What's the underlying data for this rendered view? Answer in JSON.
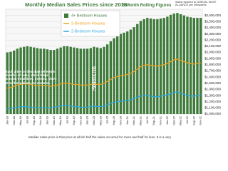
{
  "chart_data": {
    "type": "bar-line",
    "title": "Monthly Median Sales Prices since 2018",
    "subtitle": "- 6-Month Rolling Figures",
    "source_note": "Sales reported to NORCAL MLS® ALLIANCE per Infosparks",
    "annotation": "Each price on this chart reflects 6 months of sales, which helps smooth trend lines. Even so, short-term fluctuations are common.",
    "event_label": "Pandemic hits",
    "caption": "Median sales price is that price at which half the sales occurred for more and half for less. It is a very",
    "categories": [
      "Jan-18",
      null,
      "Mar-18",
      null,
      "May-18",
      null,
      "Jul-18",
      null,
      "Sep-18",
      null,
      "Nov-18",
      null,
      "Jan-19",
      null,
      "Mar-19",
      null,
      "May-19",
      null,
      "Jul-19",
      null,
      "Sep-19",
      null,
      "Nov-19",
      null,
      "Jan-20",
      null,
      "Mar-20",
      null,
      "May-20",
      null,
      "Jul-20",
      null,
      "Sep-20",
      null,
      "Nov-20",
      null,
      "Jan-21",
      null,
      "Mar-21",
      null,
      "May-21",
      null,
      "Jul-21",
      null,
      "Sep-21",
      null,
      "Nov-21",
      null,
      "Jan-22",
      null,
      "Mar-22",
      null,
      "May-22",
      null,
      "Jul-22",
      null,
      "Sep-22",
      null,
      "Nov-22"
    ],
    "series": [
      {
        "name": "4+ Bedroom Houses",
        "kind": "bar",
        "color": "#3e7a3a",
        "values": [
          2000000,
          2010000,
          2030000,
          2060000,
          2080000,
          2090000,
          2100000,
          2090000,
          2080000,
          2070000,
          2060000,
          2060000,
          2050000,
          2040000,
          2040000,
          2060000,
          2080000,
          2100000,
          2100000,
          2090000,
          2080000,
          2070000,
          2060000,
          2060000,
          2060000,
          2070000,
          2090000,
          2080000,
          2070000,
          2090000,
          2130000,
          2180000,
          2230000,
          2270000,
          2300000,
          2320000,
          2340000,
          2370000,
          2410000,
          2460000,
          2510000,
          2540000,
          2560000,
          2550000,
          2540000,
          2540000,
          2550000,
          2560000,
          2580000,
          2610000,
          2630000,
          2640000,
          2620000,
          2600000,
          2580000,
          2570000,
          2560000,
          2560000,
          2560000
        ]
      },
      {
        "name": "3-Bedroom Houses",
        "kind": "line",
        "color": "#f0a21c",
        "values": [
          1420000,
          1430000,
          1450000,
          1470000,
          1480000,
          1490000,
          1490000,
          1480000,
          1470000,
          1460000,
          1460000,
          1460000,
          1460000,
          1450000,
          1460000,
          1470000,
          1490000,
          1500000,
          1500000,
          1490000,
          1480000,
          1480000,
          1470000,
          1470000,
          1470000,
          1480000,
          1490000,
          1480000,
          1480000,
          1500000,
          1530000,
          1560000,
          1590000,
          1610000,
          1620000,
          1630000,
          1640000,
          1660000,
          1690000,
          1730000,
          1770000,
          1790000,
          1800000,
          1790000,
          1780000,
          1780000,
          1790000,
          1800000,
          1820000,
          1850000,
          1880000,
          1890000,
          1870000,
          1850000,
          1830000,
          1820000,
          1810000,
          1820000,
          1830000
        ]
      },
      {
        "name": "2-Bedroom Houses",
        "kind": "line",
        "color": "#29a9e0",
        "values": [
          1080000,
          1090000,
          1100000,
          1110000,
          1120000,
          1120000,
          1120000,
          1110000,
          1110000,
          1100000,
          1100000,
          1100000,
          1100000,
          1100000,
          1110000,
          1120000,
          1130000,
          1140000,
          1140000,
          1130000,
          1120000,
          1120000,
          1110000,
          1110000,
          1110000,
          1120000,
          1130000,
          1120000,
          1120000,
          1130000,
          1150000,
          1170000,
          1190000,
          1200000,
          1210000,
          1210000,
          1220000,
          1230000,
          1250000,
          1270000,
          1290000,
          1300000,
          1300000,
          1290000,
          1280000,
          1280000,
          1290000,
          1300000,
          1310000,
          1330000,
          1350000,
          1360000,
          1340000,
          1320000,
          1300000,
          1290000,
          1290000,
          1300000,
          1300000
        ]
      }
    ],
    "ylim": [
      1000000,
      2700000
    ],
    "yticks": [
      {
        "value": 1000000,
        "label": "$1,000,000"
      },
      {
        "value": 1100000,
        "label": "$1,100,000"
      },
      {
        "value": 1200000,
        "label": "$1,200,000"
      },
      {
        "value": 1300000,
        "label": "$1,300,000"
      },
      {
        "value": 1400000,
        "label": "$1,400,000"
      },
      {
        "value": 1500000,
        "label": "$1,500,000"
      },
      {
        "value": 1600000,
        "label": "$1,600,000"
      },
      {
        "value": 1700000,
        "label": "$1,700,000"
      },
      {
        "value": 1800000,
        "label": "$1,800,000"
      },
      {
        "value": 1900000,
        "label": "$1,900,000"
      },
      {
        "value": 2000000,
        "label": "$2,000,000"
      },
      {
        "value": 2100000,
        "label": "$2,100,000"
      },
      {
        "value": 2200000,
        "label": "$2,200,000"
      },
      {
        "value": 2300000,
        "label": "$2,300,000"
      },
      {
        "value": 2400000,
        "label": "$2,400,000"
      },
      {
        "value": 2500000,
        "label": "$2,500,000"
      },
      {
        "value": 2600000,
        "label": "$2,600,000"
      }
    ],
    "event_category_index": 26,
    "grid": true
  }
}
